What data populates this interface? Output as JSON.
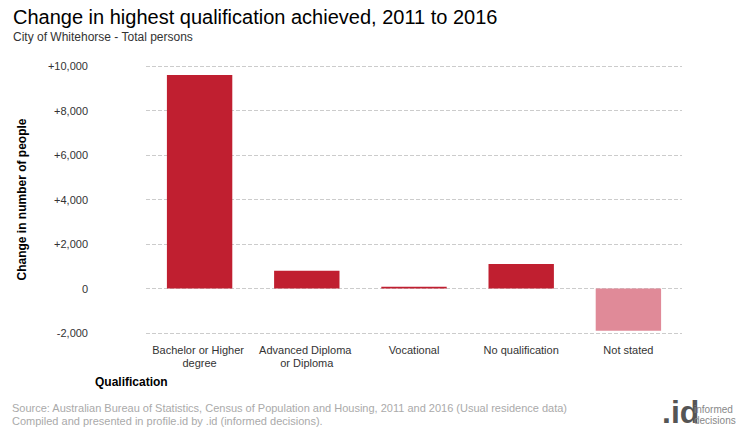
{
  "chart_data": {
    "type": "bar",
    "title": "Change in highest qualification achieved, 2011 to 2016",
    "subtitle": "City of Whitehorse - Total persons",
    "x_label": "Qualification",
    "y_label": "Change in number of people",
    "categories": [
      "Bachelor or Higher degree",
      "Advanced Diploma or Diploma",
      "Vocational",
      "No qualification",
      "Not stated"
    ],
    "values": [
      9600,
      800,
      80,
      1100,
      -1900
    ],
    "colors": [
      "#c01f30",
      "#c01f30",
      "#c01f30",
      "#c01f30",
      "#e08a98"
    ],
    "ylim": [
      -2000,
      10000
    ],
    "yticks": [
      {
        "value": -2000,
        "label": "-2,000"
      },
      0,
      {
        "value": 2000,
        "label": "+2,000"
      },
      {
        "value": 4000,
        "label": "+4,000"
      },
      {
        "value": 6000,
        "label": "+6,000"
      },
      {
        "value": 8000,
        "label": "+8,000"
      },
      {
        "value": 10000,
        "label": "+10,000"
      }
    ],
    "grid": true,
    "notes": [
      "Source: Australian Bureau of Statistics, Census of Population and Housing, 2011 and 2016 (Usual residence data)",
      "Compiled and presented in profile.id by .id (informed decisions)."
    ],
    "logo": {
      "mark": ".id",
      "text": [
        "informed",
        "decisions"
      ]
    }
  }
}
